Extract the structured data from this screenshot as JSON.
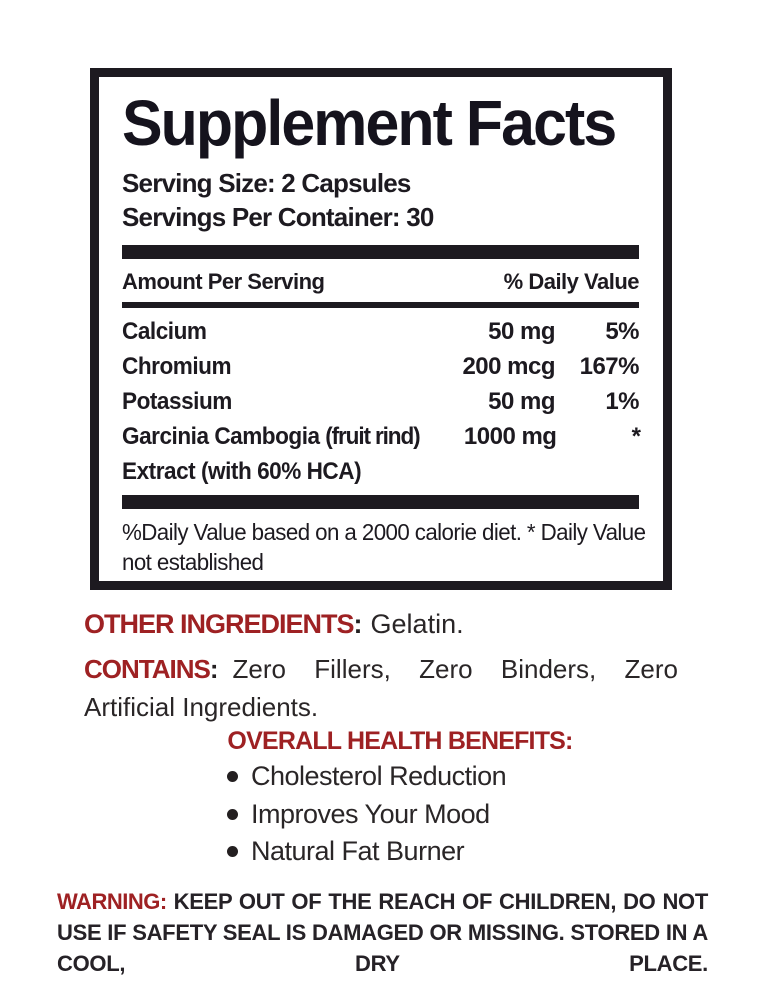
{
  "label_panel": {
    "title": "Supplement Facts",
    "serving_size": "Serving Size: 2 Capsules",
    "servings_per_container": "Servings Per Container: 30",
    "column_headers": {
      "amount": "Amount Per Serving",
      "daily_value": "% Daily Value"
    },
    "nutrients": [
      {
        "name": "Calcium",
        "amount": "50 mg",
        "daily_value": "5%"
      },
      {
        "name": "Chromium",
        "amount": "200 mcg",
        "daily_value": "167%"
      },
      {
        "name": "Potassium",
        "amount": "50 mg",
        "daily_value": "1%"
      },
      {
        "name": "Garcinia Cambogia",
        "name_detail": "(fruit rind)",
        "name_line2": "Extract (with 60% HCA)",
        "amount": "1000 mg",
        "daily_value": "*"
      }
    ],
    "footnote_lines": [
      "%Daily Value based on a 2000 calorie diet. * Daily Value",
      "not established"
    ]
  },
  "other_ingredients": {
    "label": "OTHER INGREDIENTS",
    "separator": ":",
    "value": "Gelatin."
  },
  "contains": {
    "label": "CONTAINS",
    "separator": ":",
    "value": "Zero Fillers, Zero Binders, Zero Artificial Ingredients."
  },
  "health_benefits": {
    "heading": "OVERALL HEALTH BENEFITS:",
    "items": [
      "Cholesterol Reduction",
      "Improves Your Mood",
      "Natural Fat Burner"
    ]
  },
  "warning": {
    "label": "WARNING:",
    "text": "KEEP OUT OF THE REACH OF CHILDREN, DO NOT USE IF SAFETY SEAL IS DAMAGED OR MISSING. STORED IN A COOL, DRY PLACE."
  },
  "colors": {
    "accent_red": "#9e2123",
    "ink": "#1d1a20"
  }
}
